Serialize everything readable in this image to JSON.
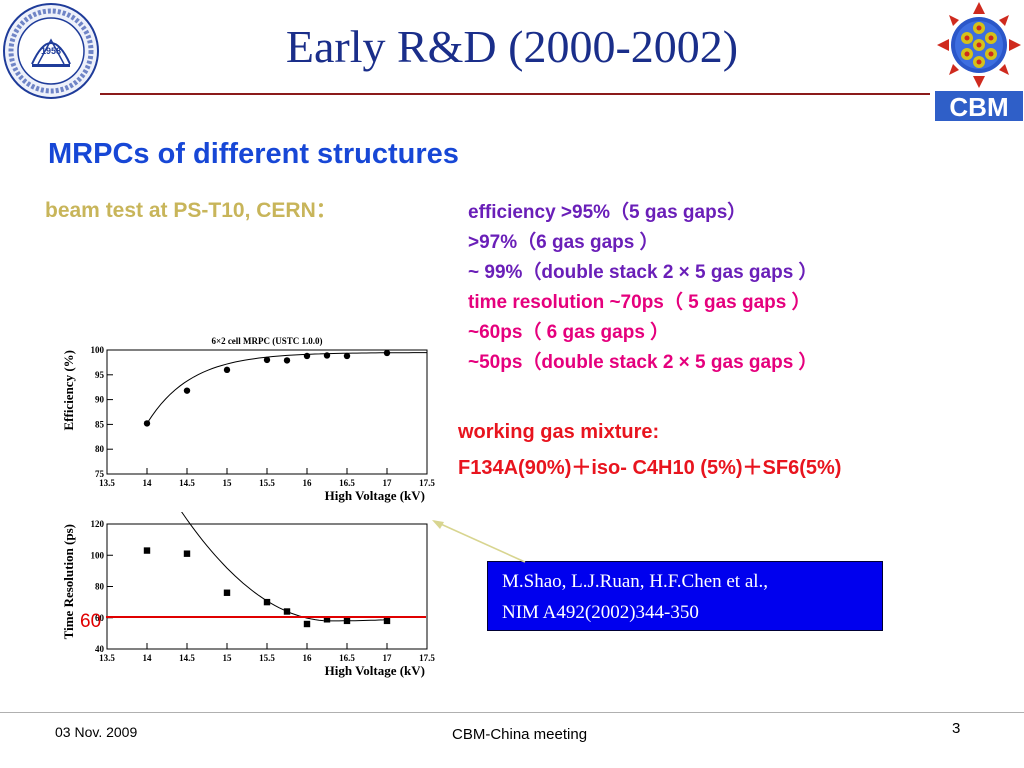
{
  "slide": {
    "title": "Early R&D (2000-2002)",
    "subtitle": "MRPCs of different structures",
    "beam_test": "beam test at PS-T10, CERN：",
    "results": [
      {
        "text": "efficiency >95%（5 gas gaps）",
        "color": "#6a1fb8"
      },
      {
        "text": ">97%（6 gas gaps ）",
        "color": "#6a1fb8"
      },
      {
        "text": "~ 99%（double stack 2 × 5 gas gaps ）",
        "color": "#6a1fb8"
      },
      {
        "text": "time resolution  ~70ps（ 5 gas gaps ）",
        "color": "#e5007d"
      },
      {
        "text": "~60ps（ 6 gas gaps ）",
        "color": "#e5007d"
      },
      {
        "text": "~50ps（double stack 2 × 5 gas gaps ）",
        "color": "#e5007d"
      }
    ],
    "gas_mixture": {
      "label": "working gas mixture:",
      "value": "F134A(90%)＋iso- C4H10 (5%)＋SF6(5%)"
    },
    "reference": {
      "line1": "M.Shao, L.J.Ruan, H.F.Chen et al.,",
      "line2": "NIM A492(2002)344-350"
    },
    "reference_line_value": "60",
    "footer": {
      "date": "03 Nov. 2009",
      "meeting": "CBM-China meeting",
      "page": "3"
    },
    "logos": {
      "left": "university-seal",
      "right_text": "CBM",
      "left_year": "1958"
    }
  },
  "chart_data": [
    {
      "type": "scatter",
      "title": "6×2 cell MRPC (USTC 1.0.0)",
      "xlabel": "High Voltage (kV)",
      "ylabel": "Efficiency (%)",
      "xlim": [
        13.5,
        17.5
      ],
      "ylim": [
        75,
        100
      ],
      "xticks": [
        13.5,
        14,
        14.5,
        15,
        15.5,
        16,
        16.5,
        17,
        17.5
      ],
      "yticks": [
        75,
        80,
        85,
        90,
        95,
        100
      ],
      "grid": false,
      "marker": "circle",
      "x": [
        14.0,
        14.5,
        15.0,
        15.5,
        15.75,
        16.0,
        16.25,
        16.5,
        17.0
      ],
      "y": [
        85.2,
        91.8,
        96.0,
        98.0,
        97.9,
        98.8,
        98.9,
        98.8,
        99.4
      ],
      "fit_curve": true
    },
    {
      "type": "scatter",
      "title": "",
      "xlabel": "High Voltage (kV)",
      "ylabel": "Time Resolution (ps)",
      "xlim": [
        13.5,
        17.5
      ],
      "ylim": [
        40,
        120
      ],
      "xticks": [
        13.5,
        14,
        14.5,
        15,
        15.5,
        16,
        16.5,
        17,
        17.5
      ],
      "yticks": [
        40,
        60,
        80,
        100,
        120
      ],
      "grid": false,
      "marker": "square",
      "x": [
        14.0,
        14.5,
        15.0,
        15.5,
        15.75,
        16.0,
        16.25,
        16.5,
        17.0
      ],
      "y": [
        103,
        101,
        76,
        70,
        64,
        56,
        59,
        58,
        58
      ],
      "fit_curve": true,
      "reference_line": 60
    }
  ]
}
